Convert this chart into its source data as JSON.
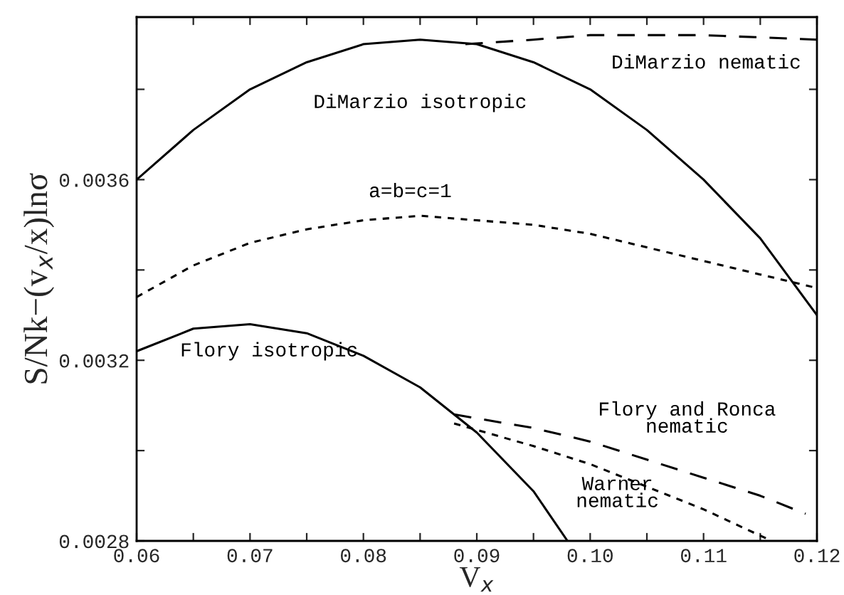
{
  "chart_data": {
    "type": "line",
    "xlabel": "V$_{x}$",
    "ylabel": "S/Nk−(v$_{x}$/x)lnσ",
    "xlim": [
      0.06,
      0.12
    ],
    "ylim": [
      0.0028,
      0.00396
    ],
    "xticks": [
      0.06,
      {
        "value": 0.065,
        "label": null
      },
      0.07,
      {
        "value": 0.075,
        "label": null
      },
      0.08,
      {
        "value": 0.085,
        "label": null
      },
      0.09,
      {
        "value": 0.095,
        "label": null
      },
      {
        "value": 0.1,
        "label": "0.10"
      },
      {
        "value": 0.105,
        "label": null
      },
      0.11,
      {
        "value": 0.115,
        "label": null
      },
      0.12
    ],
    "yticks": [
      0.0028,
      {
        "value": 0.003,
        "label": null
      },
      0.0032,
      {
        "value": 0.0034,
        "label": null
      },
      0.0036,
      {
        "value": 0.0038,
        "label": null
      }
    ],
    "grid": false,
    "series": [
      {
        "name": "DiMarzio isotropic",
        "color": "#000000",
        "line_style": "solid",
        "x": [
          0.06,
          0.065,
          0.07,
          0.075,
          0.08,
          0.085,
          0.09,
          0.095,
          0.1,
          0.105,
          0.11,
          0.115,
          0.12
        ],
        "values": [
          0.0036,
          0.00371,
          0.0038,
          0.00386,
          0.0039,
          0.00391,
          0.0039,
          0.00386,
          0.0038,
          0.00371,
          0.0036,
          0.00347,
          0.0033
        ]
      },
      {
        "name": "DiMarzio nematic",
        "color": "#000000",
        "line_style": "dashed",
        "x": [
          0.089,
          0.095,
          0.1,
          0.105,
          0.11,
          0.115,
          0.12
        ],
        "values": [
          0.0039,
          0.00391,
          0.00392,
          0.00392,
          0.00392,
          0.003915,
          0.00391
        ]
      },
      {
        "name": "a=b=c=1",
        "color": "#000000",
        "line_style": "dotted",
        "x": [
          0.06,
          0.065,
          0.07,
          0.075,
          0.08,
          0.085,
          0.09,
          0.095,
          0.1,
          0.105,
          0.11,
          0.115,
          0.12
        ],
        "values": [
          0.00334,
          0.00341,
          0.00346,
          0.00349,
          0.00351,
          0.00352,
          0.00351,
          0.0035,
          0.00348,
          0.00345,
          0.00342,
          0.00339,
          0.00336
        ]
      },
      {
        "name": "Flory isotropic",
        "color": "#000000",
        "line_style": "solid",
        "x": [
          0.06,
          0.065,
          0.07,
          0.075,
          0.08,
          0.085,
          0.09,
          0.095,
          0.098
        ],
        "values": [
          0.00322,
          0.00327,
          0.00328,
          0.00326,
          0.00321,
          0.00314,
          0.00304,
          0.00291,
          0.0028
        ]
      },
      {
        "name": "Flory and Ronca\nnematic",
        "color": "#000000",
        "line_style": "dashed",
        "x": [
          0.088,
          0.095,
          0.1,
          0.105,
          0.11,
          0.115,
          0.119
        ],
        "values": [
          0.00308,
          0.00305,
          0.00302,
          0.00298,
          0.00294,
          0.0029,
          0.00286
        ]
      },
      {
        "name": "Warner\nnematic",
        "color": "#000000",
        "line_style": "dotted",
        "x": [
          0.088,
          0.095,
          0.1,
          0.105,
          0.11,
          0.116
        ],
        "values": [
          0.00306,
          0.00301,
          0.00297,
          0.00292,
          0.00287,
          0.0028
        ]
      }
    ]
  }
}
